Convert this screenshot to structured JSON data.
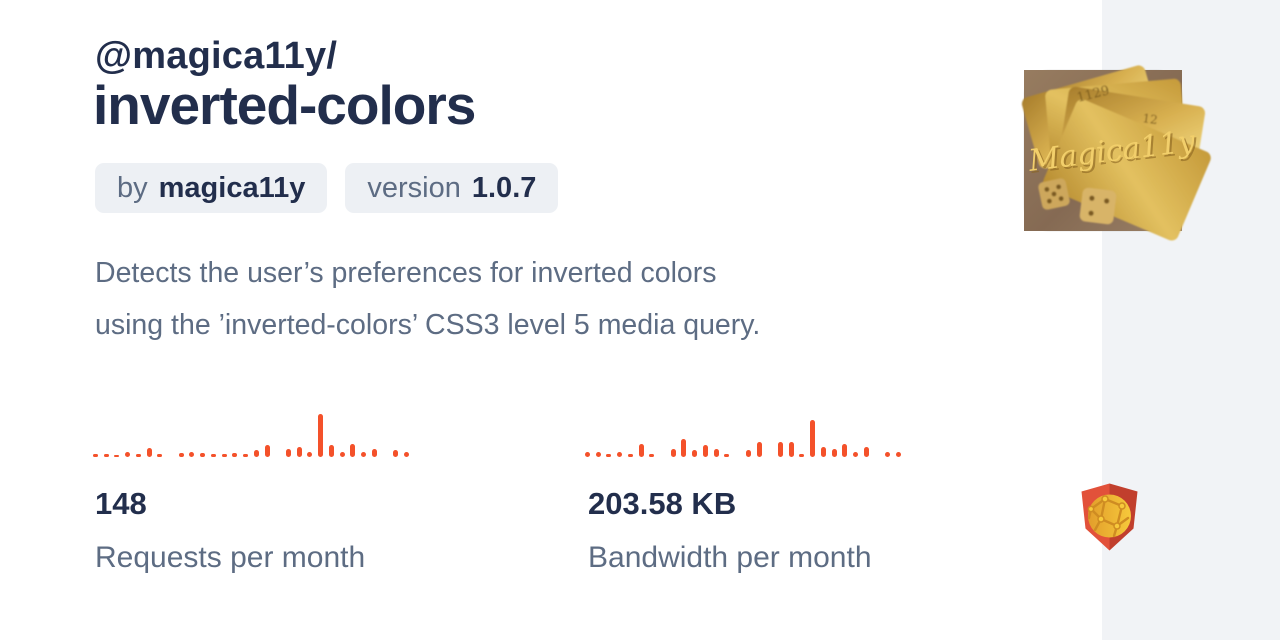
{
  "theme": {
    "accent": "#f4512a",
    "heading": "#222e4c",
    "muted": "#5d6c83",
    "badge_bg": "#edf0f4",
    "side_panel": "#f1f3f6"
  },
  "package": {
    "scope": "@magica11y/",
    "name": "inverted-colors",
    "by_label": "by",
    "author": "magica11y",
    "version_label": "version",
    "version": "1.0.7",
    "description_line1": "Detects the user’s preferences for inverted colors",
    "description_line2": "using the ’inverted-colors’ CSS3 level 5 media query."
  },
  "stats": [
    {
      "value": "148",
      "label": "Requests per month"
    },
    {
      "value": "203.58 KB",
      "label": "Bandwidth per month"
    }
  ],
  "chart_data": [
    {
      "type": "bar",
      "title": "Requests per month sparkline",
      "legend": "none",
      "grid": false,
      "color": "#f4512a",
      "ylim": [
        0,
        43
      ],
      "values": [
        3,
        3,
        2,
        5,
        3,
        9,
        3,
        0,
        4,
        5,
        4,
        3,
        3,
        4,
        3,
        7,
        12,
        0,
        8,
        10,
        5,
        43,
        12,
        5,
        13,
        5,
        8,
        0,
        7,
        5
      ]
    },
    {
      "type": "bar",
      "title": "Bandwidth per month sparkline",
      "legend": "none",
      "grid": false,
      "color": "#f4512a",
      "ylim": [
        0,
        43
      ],
      "values": [
        5,
        5,
        3,
        5,
        3,
        13,
        3,
        0,
        8,
        18,
        7,
        12,
        8,
        3,
        0,
        7,
        15,
        0,
        15,
        15,
        3,
        37,
        10,
        8,
        13,
        5,
        10,
        0,
        5,
        5
      ]
    }
  ],
  "logo": {
    "text": "Magica11y"
  },
  "icons": {
    "jsdelivr_shield": {
      "left_face": "#e2513a",
      "right_face": "#c13f2d",
      "globe": "#f0b232",
      "lines": "#cf8c22"
    }
  }
}
